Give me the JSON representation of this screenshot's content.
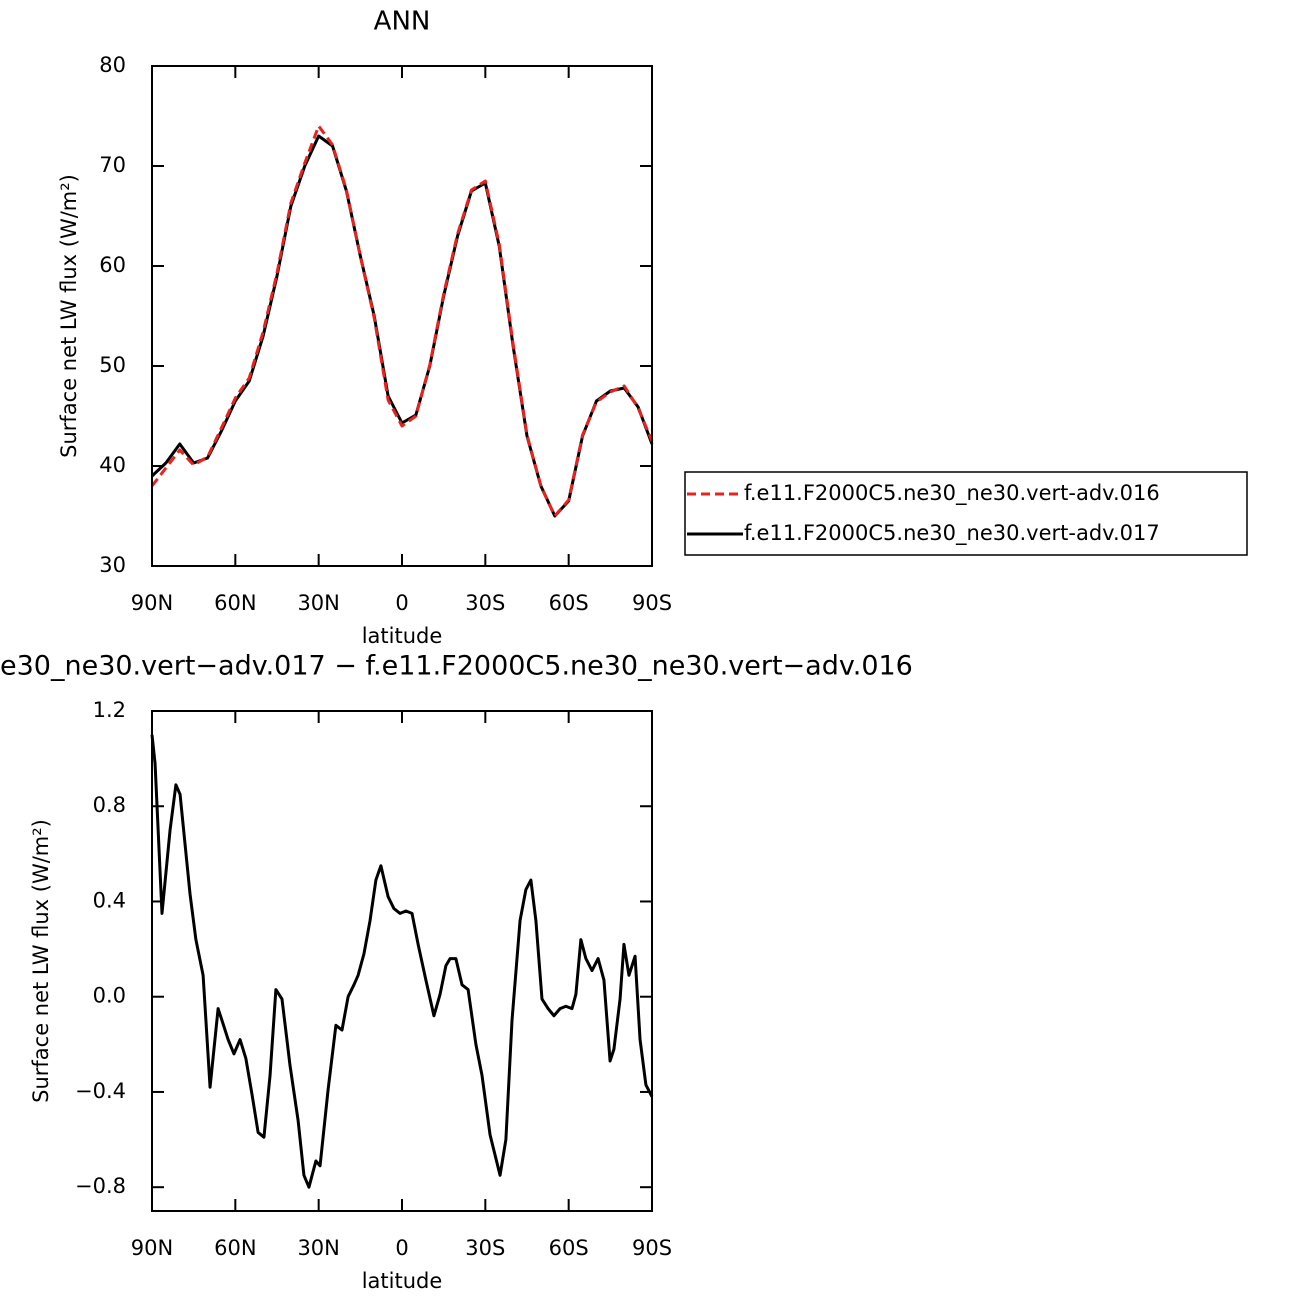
{
  "chart_data": [
    {
      "type": "line",
      "title": "ANN",
      "xlabel": "latitude",
      "ylabel": "Surface net LW flux (W/m²)",
      "x": [
        90,
        85,
        80,
        75,
        70,
        65,
        60,
        55,
        50,
        45,
        40,
        35,
        30,
        25,
        20,
        15,
        10,
        5,
        0,
        -5,
        -10,
        -15,
        -20,
        -25,
        -30,
        -35,
        -40,
        -45,
        -50,
        -55,
        -60,
        -65,
        -70,
        -75,
        -80,
        -85,
        -90
      ],
      "series": [
        {
          "name": "f.e11.F2000C5.ne30_ne30.vert-adv.016",
          "color": "#e8231f",
          "linestyle": "dashed",
          "values": [
            38,
            39.8,
            41.6,
            40.1,
            40.9,
            43.8,
            46.8,
            48.8,
            53.4,
            59.3,
            66.3,
            70.3,
            74,
            72.1,
            67.6,
            61,
            54.8,
            46.6,
            44,
            45,
            50.1,
            57.2,
            63.2,
            67.6,
            68.5,
            62.2,
            52.2,
            43.1,
            38,
            35,
            36.6,
            43.1,
            46.4,
            47.4,
            48,
            45.8,
            42.5
          ]
        },
        {
          "name": "f.e11.F2000C5.ne30_ne30.vert-adv.017",
          "color": "#000000",
          "linestyle": "solid",
          "values": [
            39,
            40.3,
            42.2,
            40.3,
            40.8,
            43.5,
            46.5,
            48.5,
            53,
            59,
            66,
            70,
            73,
            72,
            67.5,
            61,
            55,
            47,
            44.3,
            45.1,
            50,
            57,
            63,
            67.5,
            68.3,
            62,
            52,
            43,
            38,
            35,
            36.5,
            43,
            46.5,
            47.5,
            47.8,
            45.9,
            42.2
          ]
        }
      ],
      "xlim": [
        90,
        -90
      ],
      "ylim": [
        30,
        80
      ],
      "xticks": [
        {
          "value": 90,
          "label": "90N"
        },
        {
          "value": 60,
          "label": "60N"
        },
        {
          "value": 30,
          "label": "30N"
        },
        0,
        {
          "value": -30,
          "label": "30S"
        },
        {
          "value": -60,
          "label": "60S"
        },
        {
          "value": -90,
          "label": "90S"
        }
      ],
      "yticks": [
        30,
        40,
        50,
        60,
        70,
        80
      ],
      "legend": "right"
    },
    {
      "type": "line",
      "title": "e30_ne30.vert−adv.017 − f.e11.F2000C5.ne30_ne30.vert−adv.016",
      "xlabel": "latitude",
      "ylabel": "Surface net LW flux (W/m²)",
      "x": [
        90,
        88.9,
        86.4,
        83.5,
        81.4,
        79.9,
        76.3,
        74.2,
        71.6,
        69.1,
        66.2,
        64.8,
        62.6,
        60.5,
        58.3,
        56.2,
        54,
        51.8,
        49.7,
        47.5,
        45.4,
        43.2,
        40.3,
        37.4,
        35.3,
        33.5,
        31,
        29.5,
        26.6,
        23.8,
        21.6,
        19.4,
        17.3,
        15.8,
        13.7,
        11.5,
        9.4,
        7.6,
        5,
        2.9,
        0.7,
        -1.4,
        -3.6,
        -5.8,
        -8.6,
        -11.5,
        -13.7,
        -15.8,
        -17.3,
        -19.4,
        -21.6,
        -23.8,
        -26.6,
        -28.8,
        -31.7,
        -35.3,
        -37.4,
        -39.6,
        -42.5,
        -44.6,
        -46.4,
        -48.2,
        -50.4,
        -52.6,
        -54.7,
        -56.9,
        -59,
        -61.2,
        -62.6,
        -64.4,
        -66.2,
        -68.4,
        -70.6,
        -72.7,
        -74.9,
        -76.3,
        -78.5,
        -79.9,
        -81.7,
        -83.9,
        -85.7,
        -87.8,
        -90
      ],
      "series": [
        {
          "color": "#000000",
          "linestyle": "solid",
          "values": [
            1.1,
            0.98,
            0.35,
            0.7,
            0.89,
            0.85,
            0.43,
            0.24,
            0.09,
            -0.38,
            -0.05,
            -0.1,
            -0.18,
            -0.24,
            -0.18,
            -0.26,
            -0.41,
            -0.57,
            -0.59,
            -0.33,
            0.03,
            -0.01,
            -0.29,
            -0.52,
            -0.75,
            -0.8,
            -0.69,
            -0.71,
            -0.39,
            -0.12,
            -0.14,
            0,
            0.05,
            0.09,
            0.18,
            0.32,
            0.49,
            0.55,
            0.42,
            0.37,
            0.35,
            0.36,
            0.35,
            0.22,
            0.07,
            -0.08,
            0.01,
            0.13,
            0.16,
            0.16,
            0.05,
            0.03,
            -0.2,
            -0.33,
            -0.58,
            -0.75,
            -0.6,
            -0.1,
            0.32,
            0.45,
            0.49,
            0.32,
            -0.01,
            -0.05,
            -0.08,
            -0.05,
            -0.04,
            -0.05,
            0.01,
            0.24,
            0.16,
            0.11,
            0.16,
            0.07,
            -0.27,
            -0.22,
            -0.01,
            0.22,
            0.09,
            0.17,
            -0.18,
            -0.37,
            -0.42
          ]
        }
      ],
      "xlim": [
        90,
        -90
      ],
      "ylim": [
        -0.9,
        1.2
      ],
      "xticks": [
        {
          "value": 90,
          "label": "90N"
        },
        {
          "value": 60,
          "label": "60N"
        },
        {
          "value": 30,
          "label": "30N"
        },
        0,
        {
          "value": -30,
          "label": "30S"
        },
        {
          "value": -60,
          "label": "60S"
        },
        {
          "value": -90,
          "label": "90S"
        }
      ],
      "yticks": [
        {
          "value": -0.8,
          "label": "−0.8"
        },
        {
          "value": -0.4,
          "label": "−0.4"
        },
        {
          "value": 0,
          "label": "0.0"
        },
        0.4,
        0.8,
        1.2
      ]
    }
  ]
}
